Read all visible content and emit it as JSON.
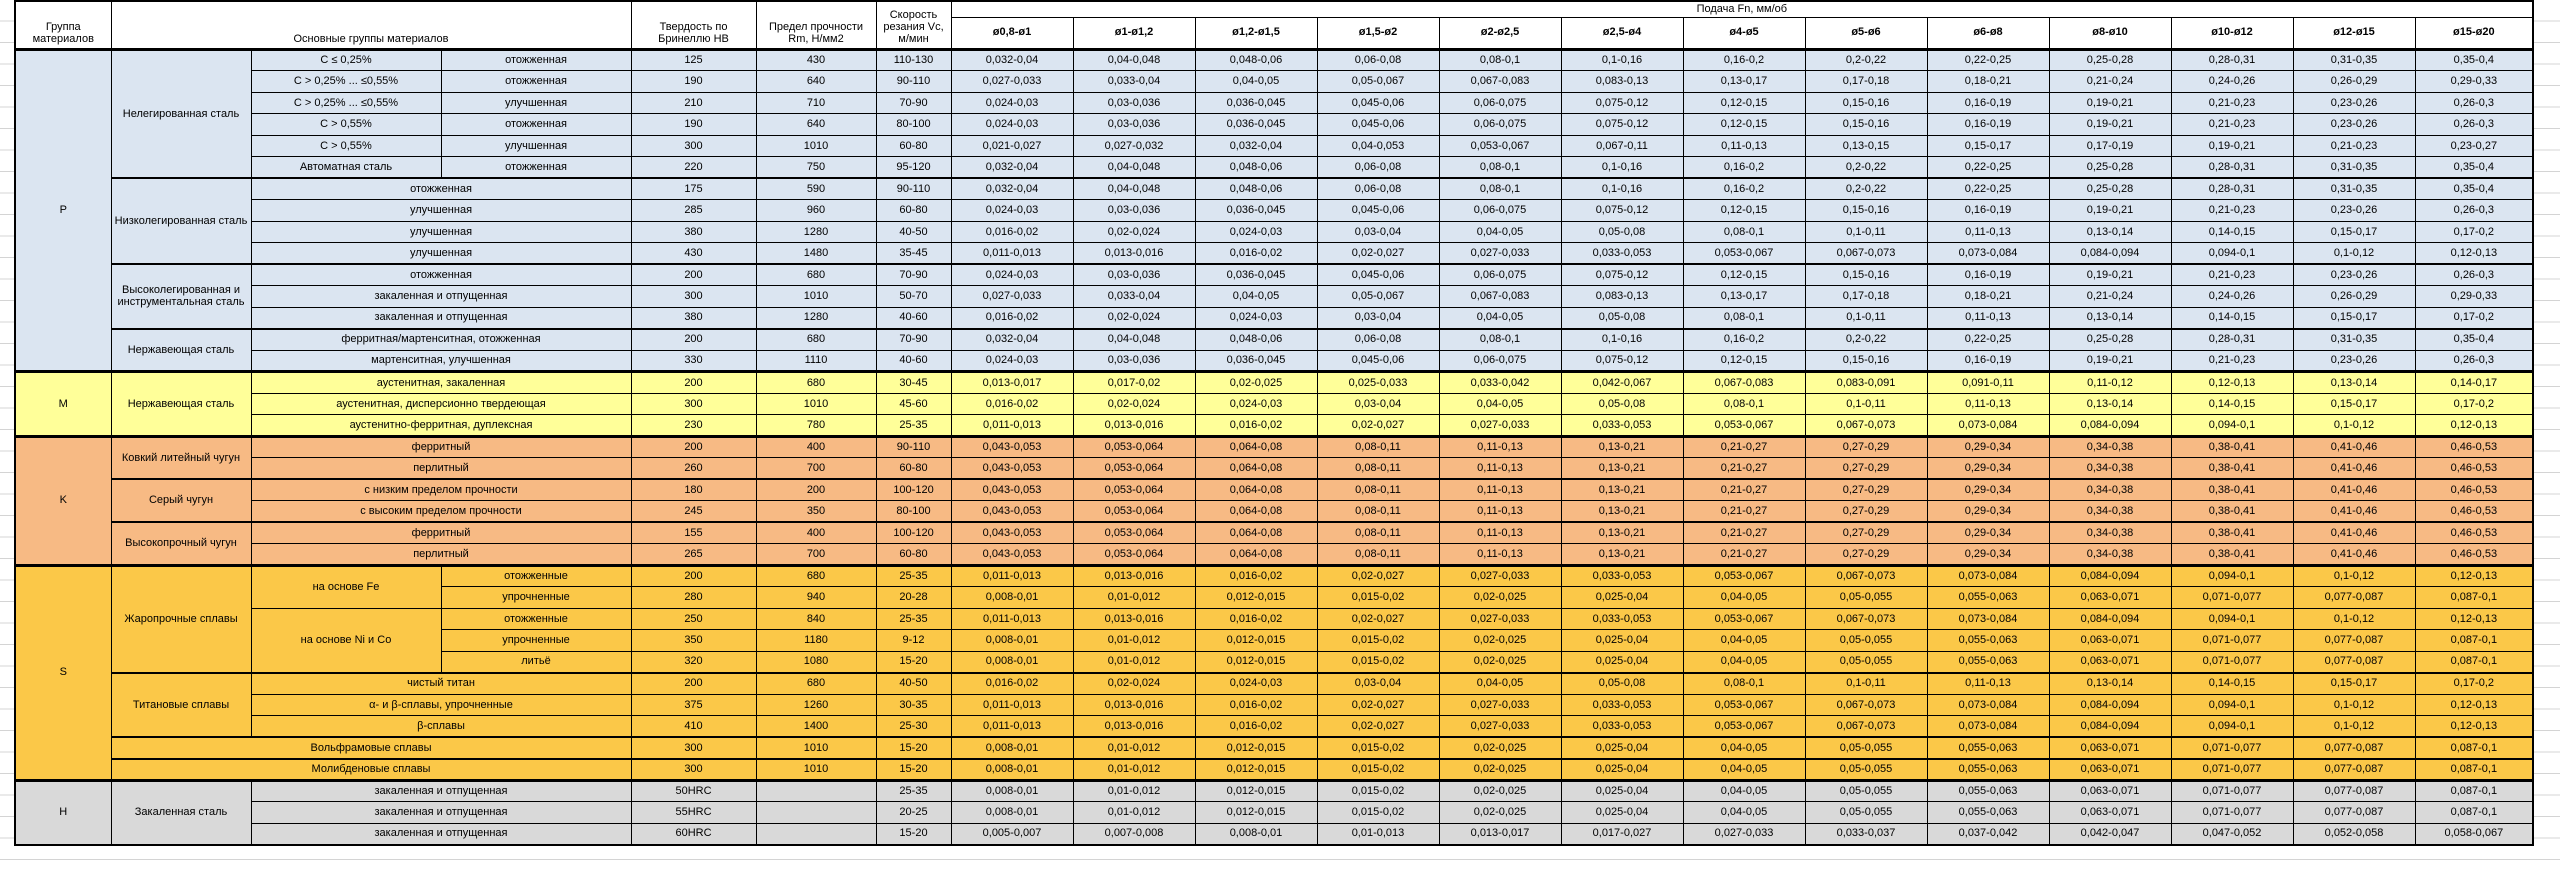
{
  "sheet": {
    "headers": {
      "group": "Группа материалов",
      "main": "Основные группы материалов",
      "hardness": "Твердость по Бринеллю HB",
      "strength": "Предел прочности Rm, Н/мм2",
      "speed": "Скорость резания Vc, м/мин",
      "feed_title": "Подача Fn, мм/об"
    },
    "feed_cols": [
      "ø0,8-ø1",
      "ø1-ø1,2",
      "ø1,2-ø1,5",
      "ø1,5-ø2",
      "ø2-ø2,5",
      "ø2,5-ø4",
      "ø4-ø5",
      "ø5-ø6",
      "ø6-ø8",
      "ø8-ø10",
      "ø10-ø12",
      "ø12-ø15",
      "ø15-ø20"
    ],
    "feed_presets": {
      "A": [
        "0,032-0,04",
        "0,04-0,048",
        "0,048-0,06",
        "0,06-0,08",
        "0,08-0,1",
        "0,1-0,16",
        "0,16-0,2",
        "0,2-0,22",
        "0,22-0,25",
        "0,25-0,28",
        "0,28-0,31",
        "0,31-0,35",
        "0,35-0,4"
      ],
      "B": [
        "0,027-0,033",
        "0,033-0,04",
        "0,04-0,05",
        "0,05-0,067",
        "0,067-0,083",
        "0,083-0,13",
        "0,13-0,17",
        "0,17-0,18",
        "0,18-0,21",
        "0,21-0,24",
        "0,24-0,26",
        "0,26-0,29",
        "0,29-0,33"
      ],
      "C": [
        "0,024-0,03",
        "0,03-0,036",
        "0,036-0,045",
        "0,045-0,06",
        "0,06-0,075",
        "0,075-0,12",
        "0,12-0,15",
        "0,15-0,16",
        "0,16-0,19",
        "0,19-0,21",
        "0,21-0,23",
        "0,23-0,26",
        "0,26-0,3"
      ],
      "D": [
        "0,021-0,027",
        "0,027-0,032",
        "0,032-0,04",
        "0,04-0,053",
        "0,053-0,067",
        "0,067-0,11",
        "0,11-0,13",
        "0,13-0,15",
        "0,15-0,17",
        "0,17-0,19",
        "0,19-0,21",
        "0,21-0,23",
        "0,23-0,27"
      ],
      "E": [
        "0,016-0,02",
        "0,02-0,024",
        "0,024-0,03",
        "0,03-0,04",
        "0,04-0,05",
        "0,05-0,08",
        "0,08-0,1",
        "0,1-0,11",
        "0,11-0,13",
        "0,13-0,14",
        "0,14-0,15",
        "0,15-0,17",
        "0,17-0,2"
      ],
      "F": [
        "0,011-0,013",
        "0,013-0,016",
        "0,016-0,02",
        "0,02-0,027",
        "0,027-0,033",
        "0,033-0,053",
        "0,053-0,067",
        "0,067-0,073",
        "0,073-0,084",
        "0,084-0,094",
        "0,094-0,1",
        "0,1-0,12",
        "0,12-0,13"
      ],
      "G": [
        "0,013-0,017",
        "0,017-0,02",
        "0,02-0,025",
        "0,025-0,033",
        "0,033-0,042",
        "0,042-0,067",
        "0,067-0,083",
        "0,083-0,091",
        "0,091-0,11",
        "0,11-0,12",
        "0,12-0,13",
        "0,13-0,14",
        "0,14-0,17"
      ],
      "CI": [
        "0,043-0,053",
        "0,053-0,064",
        "0,064-0,08",
        "0,08-0,11",
        "0,11-0,13",
        "0,13-0,21",
        "0,21-0,27",
        "0,27-0,29",
        "0,29-0,34",
        "0,34-0,38",
        "0,38-0,41",
        "0,41-0,46",
        "0,46-0,53"
      ],
      "S1": [
        "0,008-0,01",
        "0,01-0,012",
        "0,012-0,015",
        "0,015-0,02",
        "0,02-0,025",
        "0,025-0,04",
        "0,04-0,05",
        "0,05-0,055",
        "0,055-0,063",
        "0,063-0,071",
        "0,071-0,077",
        "0,077-0,087",
        "0,087-0,1"
      ],
      "H2": [
        "0,005-0,007",
        "0,007-0,008",
        "0,008-0,01",
        "0,01-0,013",
        "0,013-0,017",
        "0,017-0,027",
        "0,027-0,033",
        "0,033-0,037",
        "0,037-0,042",
        "0,042-0,047",
        "0,047-0,052",
        "0,052-0,058",
        "0,058-0,067"
      ]
    },
    "groups": [
      {
        "code": "P",
        "color": "#DBE5F1",
        "families": [
          {
            "name": "Нелегированная сталь",
            "layout": "two",
            "rows": [
              {
                "s1": "C ≤ 0,25%",
                "s2": "отожженная",
                "hb": "125",
                "rm": "430",
                "vc": "110-130",
                "feeds": "A"
              },
              {
                "s1": "C > 0,25% ... ≤0,55%",
                "s2": "отожженная",
                "hb": "190",
                "rm": "640",
                "vc": "90-110",
                "feeds": "B"
              },
              {
                "s1": "C > 0,25% ... ≤0,55%",
                "s2": "улучшенная",
                "hb": "210",
                "rm": "710",
                "vc": "70-90",
                "feeds": "C"
              },
              {
                "s1": "C > 0,55%",
                "s2": "отожженная",
                "hb": "190",
                "rm": "640",
                "vc": "80-100",
                "feeds": "C"
              },
              {
                "s1": "C > 0,55%",
                "s2": "улучшенная",
                "hb": "300",
                "rm": "1010",
                "vc": "60-80",
                "feeds": "D"
              },
              {
                "s1": "Автоматная сталь",
                "s2": "отожженная",
                "hb": "220",
                "rm": "750",
                "vc": "95-120",
                "feeds": "A"
              }
            ]
          },
          {
            "name": "Низколегированная сталь",
            "layout": "one",
            "rows": [
              {
                "s": "отожженная",
                "hb": "175",
                "rm": "590",
                "vc": "90-110",
                "feeds": "A"
              },
              {
                "s": "улучшенная",
                "hb": "285",
                "rm": "960",
                "vc": "60-80",
                "feeds": "C"
              },
              {
                "s": "улучшенная",
                "hb": "380",
                "rm": "1280",
                "vc": "40-50",
                "feeds": "E"
              },
              {
                "s": "улучшенная",
                "hb": "430",
                "rm": "1480",
                "vc": "35-45",
                "feeds": "F"
              }
            ]
          },
          {
            "name": "Высоколегированная и инструментальная сталь",
            "layout": "one",
            "rows": [
              {
                "s": "отожженная",
                "hb": "200",
                "rm": "680",
                "vc": "70-90",
                "feeds": "C"
              },
              {
                "s": "закаленная и отпущенная",
                "hb": "300",
                "rm": "1010",
                "vc": "50-70",
                "feeds": "B"
              },
              {
                "s": "закаленная и отпущенная",
                "hb": "380",
                "rm": "1280",
                "vc": "40-60",
                "feeds": "E"
              }
            ]
          },
          {
            "name": "Нержавеющая сталь",
            "layout": "one",
            "rows": [
              {
                "s": "ферритная/мартенситная, отожженная",
                "hb": "200",
                "rm": "680",
                "vc": "70-90",
                "feeds": "A"
              },
              {
                "s": "мартенситная, улучшенная",
                "hb": "330",
                "rm": "1110",
                "vc": "40-60",
                "feeds": "C"
              }
            ]
          }
        ]
      },
      {
        "code": "M",
        "color": "#FFFF99",
        "families": [
          {
            "name": "Нержавеющая сталь",
            "layout": "one",
            "rows": [
              {
                "s": "аустенитная, закаленная",
                "hb": "200",
                "rm": "680",
                "vc": "30-45",
                "feeds": "G"
              },
              {
                "s": "аустенитная, дисперсионно твердеющая",
                "hb": "300",
                "rm": "1010",
                "vc": "45-60",
                "feeds": "E"
              },
              {
                "s": "аустенитно-ферритная, дуплексная",
                "hb": "230",
                "rm": "780",
                "vc": "25-35",
                "feeds": "F"
              }
            ]
          }
        ]
      },
      {
        "code": "K",
        "color": "#F7BA84",
        "families": [
          {
            "name": "Ковкий литейный чугун",
            "layout": "one",
            "rows": [
              {
                "s": "ферритный",
                "hb": "200",
                "rm": "400",
                "vc": "90-110",
                "feeds": "CI"
              },
              {
                "s": "перлитный",
                "hb": "260",
                "rm": "700",
                "vc": "60-80",
                "feeds": "CI"
              }
            ]
          },
          {
            "name": "Серый чугун",
            "layout": "one",
            "rows": [
              {
                "s": "с низким пределом прочности",
                "hb": "180",
                "rm": "200",
                "vc": "100-120",
                "feeds": "CI"
              },
              {
                "s": "с высоким пределом прочности",
                "hb": "245",
                "rm": "350",
                "vc": "80-100",
                "feeds": "CI"
              }
            ]
          },
          {
            "name": "Высокопрочный чугун",
            "layout": "one",
            "rows": [
              {
                "s": "ферритный",
                "hb": "155",
                "rm": "400",
                "vc": "100-120",
                "feeds": "CI"
              },
              {
                "s": "перлитный",
                "hb": "265",
                "rm": "700",
                "vc": "60-80",
                "feeds": "CI"
              }
            ]
          }
        ]
      },
      {
        "code": "S",
        "color": "#FBC848",
        "families": [
          {
            "name": "Жаропрочные сплавы",
            "layout": "grouped",
            "subgroups": [
              {
                "s1": "на основе Fe",
                "rows": [
                  {
                    "s2": "отожженные",
                    "hb": "200",
                    "rm": "680",
                    "vc": "25-35",
                    "feeds": "F"
                  },
                  {
                    "s2": "упрочненные",
                    "hb": "280",
                    "rm": "940",
                    "vc": "20-28",
                    "feeds": "S1"
                  }
                ]
              },
              {
                "s1": "на основе Ni и Co",
                "rows": [
                  {
                    "s2": "отожженные",
                    "hb": "250",
                    "rm": "840",
                    "vc": "25-35",
                    "feeds": "F"
                  },
                  {
                    "s2": "упрочненные",
                    "hb": "350",
                    "rm": "1180",
                    "vc": "9-12",
                    "feeds": "S1"
                  },
                  {
                    "s2": "литьё",
                    "hb": "320",
                    "rm": "1080",
                    "vc": "15-20",
                    "feeds": "S1"
                  }
                ]
              }
            ]
          },
          {
            "name": "Титановые сплавы",
            "layout": "one",
            "rows": [
              {
                "s": "чистый титан",
                "hb": "200",
                "rm": "680",
                "vc": "40-50",
                "feeds": "E"
              },
              {
                "s": "α- и β-сплавы, упрочненные",
                "hb": "375",
                "rm": "1260",
                "vc": "30-35",
                "feeds": "F"
              },
              {
                "s": "β-сплавы",
                "hb": "410",
                "rm": "1400",
                "vc": "25-30",
                "feeds": "F"
              }
            ]
          },
          {
            "name": "Вольфрамовые сплавы",
            "layout": "span3",
            "rows": [
              {
                "hb": "300",
                "rm": "1010",
                "vc": "15-20",
                "feeds": "S1"
              }
            ]
          },
          {
            "name": "Молибденовые сплавы",
            "layout": "span3",
            "rows": [
              {
                "hb": "300",
                "rm": "1010",
                "vc": "15-20",
                "feeds": "S1"
              }
            ]
          }
        ]
      },
      {
        "code": "H",
        "color": "#D9D9D9",
        "families": [
          {
            "name": "Закаленная сталь",
            "layout": "one",
            "rows": [
              {
                "s": "закаленная и отпущенная",
                "hb": "50HRC",
                "rm": "",
                "vc": "25-35",
                "feeds": "S1"
              },
              {
                "s": "закаленная и отпущенная",
                "hb": "55HRC",
                "rm": "",
                "vc": "20-25",
                "feeds": "S1"
              },
              {
                "s": "закаленная и отпущенная",
                "hb": "60HRC",
                "rm": "",
                "vc": "15-20",
                "feeds": "H2"
              }
            ]
          }
        ]
      }
    ]
  }
}
